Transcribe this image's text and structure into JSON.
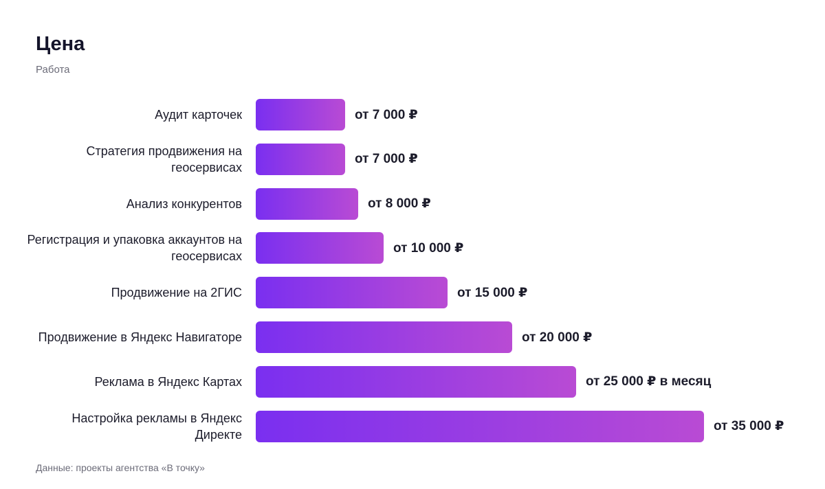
{
  "header": {
    "title": "Цена",
    "subtitle": "Работа"
  },
  "footer": {
    "source": "Данные: проекты агентства «В точку»"
  },
  "colors": {
    "bar_gradient_start": "#7a2ff0",
    "bar_gradient_end": "#b94bd4",
    "text": "#1c1c2b",
    "muted_text": "#6b6b78"
  },
  "chart_data": {
    "type": "bar",
    "orientation": "horizontal",
    "title": "Цена",
    "subtitle": "Работа",
    "categories": [
      "Аудит карточек",
      "Стратегия продвижения на геосервисах",
      "Анализ конкурентов",
      "Регистрация и упаковка аккаунтов на геосервисах",
      "Продвижение на 2ГИС",
      "Продвижение в Яндекс Навигаторе",
      "Реклама в Яндекс Картах",
      "Настройка рекламы в Яндекс Директе"
    ],
    "values": [
      7000,
      7000,
      8000,
      10000,
      15000,
      20000,
      25000,
      35000
    ],
    "value_labels": [
      "от 7 000 ₽",
      "от 7 000 ₽",
      "от 8 000 ₽",
      "от 10 000 ₽",
      "от 15 000 ₽",
      "от 20 000 ₽",
      "от 25 000 ₽ в месяц",
      "от 35 000 ₽"
    ],
    "xlim": [
      0,
      35000
    ],
    "grid": false,
    "legend": "none",
    "source": "Данные: проекты агентства «В точку»"
  }
}
